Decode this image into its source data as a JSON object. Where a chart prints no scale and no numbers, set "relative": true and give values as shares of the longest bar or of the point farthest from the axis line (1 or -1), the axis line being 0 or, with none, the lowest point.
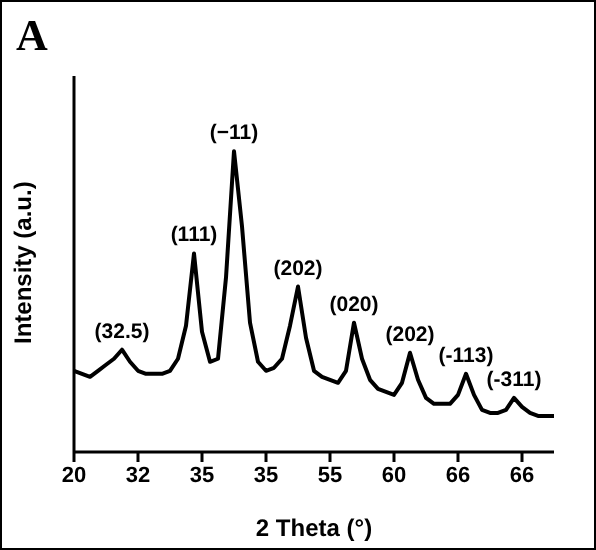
{
  "chart_data": {
    "type": "line",
    "title": "A",
    "xlabel": "2 Theta (°)",
    "ylabel": "Intensity (a.u.)",
    "relative": true,
    "tick_labels": "x",
    "grid": false,
    "legend": false,
    "marker": "none",
    "line_style": "solid",
    "categories": [
      "20",
      null,
      null,
      null,
      null,
      null,
      null,
      null,
      "32",
      null,
      null,
      null,
      null,
      null,
      null,
      null,
      "35",
      null,
      null,
      null,
      null,
      null,
      null,
      null,
      "35",
      null,
      null,
      null,
      null,
      null,
      null,
      null,
      "55",
      null,
      null,
      null,
      null,
      null,
      null,
      null,
      "60",
      null,
      null,
      null,
      null,
      null,
      null,
      null,
      "66",
      null,
      null,
      null,
      null,
      null,
      null,
      null,
      "66",
      null,
      null,
      null,
      null
    ],
    "series": [
      {
        "color": "#000000",
        "values": [
          0.27,
          0.26,
          0.25,
          0.27,
          0.29,
          0.31,
          0.34,
          0.3,
          0.27,
          0.26,
          0.26,
          0.26,
          0.27,
          0.31,
          0.42,
          0.66,
          0.4,
          0.3,
          0.31,
          0.58,
          1.0,
          0.75,
          0.43,
          0.3,
          0.27,
          0.28,
          0.31,
          0.42,
          0.55,
          0.38,
          0.27,
          0.25,
          0.24,
          0.23,
          0.27,
          0.43,
          0.31,
          0.24,
          0.21,
          0.2,
          0.19,
          0.23,
          0.33,
          0.24,
          0.18,
          0.16,
          0.16,
          0.16,
          0.19,
          0.26,
          0.19,
          0.14,
          0.13,
          0.13,
          0.14,
          0.18,
          0.15,
          0.13,
          0.12,
          0.12,
          0.12
        ]
      }
    ],
    "annotations": [
      "(32.5)",
      "(111)",
      "(−11)",
      "(202)",
      "(020)",
      "(202)",
      "(-113)",
      "(-311)"
    ]
  }
}
